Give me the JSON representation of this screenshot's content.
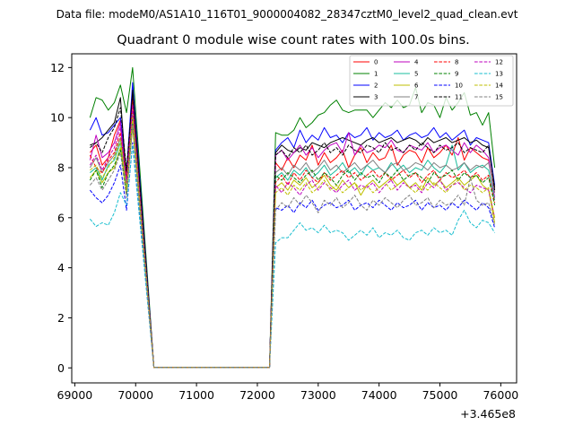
{
  "chart_data": {
    "type": "line",
    "suptitle": "Data file: modeM0/AS1A10_116T01_9000004082_28347cztM0_level2_quad_clean.evt",
    "title": "Quadrant 0 module wise count rates with 100.0s bins.",
    "xlabel": "",
    "ylabel": "",
    "x_offset_label": "+3.465e8",
    "xlim": [
      68950,
      76260
    ],
    "ylim": [
      -0.6,
      12.55
    ],
    "xticks": [
      69000,
      70000,
      71000,
      72000,
      73000,
      74000,
      75000,
      76000
    ],
    "yticks": [
      0,
      2,
      4,
      6,
      8,
      10,
      12
    ],
    "legend_position": "top-right",
    "x_start": 69250,
    "x_step": 100,
    "series": [
      {
        "name": "0",
        "color": "#ff0000",
        "dash": "solid",
        "gap_rate": 0.02,
        "gap_start": 70300,
        "gap_end": 72200,
        "segA": [
          8.6,
          8.9,
          8.1,
          8.4,
          9.3,
          9.9,
          7.6,
          10.8
        ],
        "segB": [
          8.2,
          7.9,
          8.4,
          8.0,
          8.5,
          8.3,
          8.9,
          8.1,
          8.6,
          8.2,
          8.4,
          8.7,
          8.0,
          8.5,
          8.8,
          8.2,
          8.6,
          8.3,
          8.4,
          8.9,
          8.1,
          8.5,
          8.7,
          8.6,
          8.2,
          8.8,
          8.4,
          8.6,
          8.9,
          8.5,
          9.2,
          8.3,
          8.8,
          8.6,
          8.4,
          8.3,
          7.0
        ]
      },
      {
        "name": "1",
        "color": "#008000",
        "dash": "solid",
        "gap_rate": 0.02,
        "gap_start": 70300,
        "gap_end": 72200,
        "segA": [
          10.0,
          10.8,
          10.7,
          10.3,
          10.6,
          11.3,
          10.2,
          12.0
        ],
        "segB": [
          9.4,
          9.3,
          9.3,
          9.5,
          10.0,
          9.6,
          9.8,
          10.1,
          10.2,
          10.5,
          10.7,
          10.3,
          10.2,
          10.3,
          10.3,
          10.3,
          10.0,
          10.3,
          10.6,
          10.4,
          10.7,
          10.4,
          10.5,
          11.2,
          10.2,
          10.6,
          10.5,
          10.0,
          10.8,
          10.3,
          10.6,
          11.0,
          10.1,
          10.2,
          9.7,
          10.2,
          8.0
        ]
      },
      {
        "name": "2",
        "color": "#0000ff",
        "dash": "solid",
        "gap_rate": 0.02,
        "gap_start": 70300,
        "gap_end": 72200,
        "segA": [
          9.5,
          10.0,
          9.3,
          9.4,
          9.7,
          10.0,
          7.8,
          11.4
        ],
        "segB": [
          8.7,
          9.0,
          9.2,
          8.8,
          9.5,
          9.0,
          9.3,
          9.1,
          9.6,
          9.2,
          9.3,
          9.0,
          9.4,
          9.2,
          9.3,
          9.6,
          9.1,
          9.4,
          9.2,
          9.3,
          9.5,
          9.1,
          9.3,
          9.4,
          9.2,
          9.3,
          9.6,
          9.2,
          9.4,
          9.1,
          9.3,
          9.5,
          8.9,
          9.2,
          9.1,
          9.0,
          7.3
        ]
      },
      {
        "name": "3",
        "color": "#000000",
        "dash": "solid",
        "gap_rate": 0.02,
        "gap_start": 70300,
        "gap_end": 72200,
        "segA": [
          8.9,
          9.0,
          9.2,
          9.5,
          9.8,
          10.8,
          7.5,
          11.1
        ],
        "segB": [
          8.6,
          8.9,
          8.7,
          8.6,
          8.8,
          8.7,
          9.0,
          8.9,
          8.8,
          9.0,
          9.1,
          9.2,
          9.1,
          9.0,
          8.9,
          9.1,
          9.2,
          9.0,
          9.1,
          9.2,
          9.0,
          9.1,
          9.2,
          9.1,
          8.9,
          9.2,
          9.0,
          9.1,
          9.2,
          9.0,
          9.1,
          9.2,
          9.0,
          9.1,
          8.9,
          8.8,
          7.2
        ]
      },
      {
        "name": "4",
        "color": "#bf00bf",
        "dash": "solid",
        "gap_rate": 0.02,
        "gap_start": 70300,
        "gap_end": 72200,
        "segA": [
          8.3,
          9.3,
          8.4,
          8.6,
          9.0,
          9.8,
          7.3,
          10.0
        ],
        "segB": [
          8.5,
          8.7,
          8.3,
          8.6,
          8.9,
          8.5,
          8.8,
          8.4,
          8.7,
          8.9,
          9.0,
          8.6,
          9.4,
          8.5,
          8.9,
          8.6,
          8.7,
          8.9,
          8.8,
          9.1,
          8.7,
          8.6,
          8.9,
          8.8,
          8.7,
          9.0,
          8.6,
          8.8,
          8.9,
          8.7,
          8.5,
          9.0,
          8.6,
          8.9,
          8.7,
          8.4,
          6.8
        ]
      },
      {
        "name": "5",
        "color": "#1abc9c",
        "dash": "solid",
        "gap_rate": 0.02,
        "gap_start": 70300,
        "gap_end": 72200,
        "segA": [
          7.8,
          8.0,
          7.5,
          8.1,
          8.3,
          9.0,
          7.2,
          9.8
        ],
        "segB": [
          7.6,
          7.8,
          7.5,
          7.9,
          7.7,
          8.0,
          7.6,
          7.8,
          8.1,
          7.7,
          7.9,
          8.2,
          7.8,
          8.0,
          7.7,
          8.1,
          7.9,
          8.0,
          7.8,
          8.2,
          7.9,
          8.1,
          7.8,
          8.0,
          7.9,
          8.3,
          8.0,
          7.8,
          8.1,
          8.9,
          7.9,
          8.2,
          7.8,
          8.0,
          8.1,
          7.9,
          6.7
        ]
      },
      {
        "name": "6",
        "color": "#bfbf00",
        "dash": "solid",
        "gap_rate": 0.02,
        "gap_start": 70300,
        "gap_end": 72200,
        "segA": [
          7.6,
          7.9,
          7.4,
          7.8,
          8.0,
          8.8,
          7.0,
          9.6
        ],
        "segB": [
          7.2,
          7.4,
          7.1,
          7.5,
          7.3,
          7.6,
          7.2,
          7.4,
          7.7,
          7.3,
          7.1,
          7.5,
          7.2,
          7.4,
          6.9,
          7.3,
          7.5,
          7.2,
          7.4,
          7.6,
          7.3,
          7.5,
          7.2,
          7.4,
          7.1,
          7.6,
          7.3,
          7.5,
          7.2,
          7.4,
          7.6,
          7.3,
          7.5,
          7.7,
          7.3,
          7.1,
          5.8
        ]
      },
      {
        "name": "7",
        "color": "#808080",
        "dash": "solid",
        "gap_rate": 0.02,
        "gap_start": 70300,
        "gap_end": 72200,
        "segA": [
          8.0,
          8.4,
          7.8,
          8.2,
          8.5,
          9.2,
          7.4,
          10.2
        ],
        "segB": [
          7.8,
          8.0,
          7.7,
          8.1,
          7.9,
          8.2,
          7.8,
          8.0,
          8.3,
          7.9,
          8.1,
          7.8,
          8.0,
          8.2,
          7.9,
          8.1,
          8.3,
          8.0,
          7.8,
          8.1,
          8.2,
          7.9,
          8.0,
          8.2,
          8.1,
          7.9,
          8.2,
          8.0,
          8.1,
          7.9,
          8.0,
          8.2,
          7.9,
          8.1,
          8.0,
          8.2,
          7.0
        ]
      },
      {
        "name": "8",
        "color": "#ff0000",
        "dash": "dashed",
        "gap_rate": 0.02,
        "gap_start": 70300,
        "gap_end": 72200,
        "segA": [
          8.5,
          8.0,
          7.8,
          8.3,
          8.6,
          9.4,
          7.6,
          10.4
        ],
        "segB": [
          7.4,
          7.7,
          7.3,
          7.8,
          7.5,
          7.9,
          7.6,
          7.4,
          7.8,
          7.5,
          7.7,
          7.9,
          7.6,
          7.8,
          7.5,
          7.7,
          7.9,
          7.6,
          7.8,
          7.5,
          7.7,
          7.9,
          7.6,
          7.8,
          7.4,
          7.7,
          7.9,
          7.5,
          7.8,
          7.6,
          7.7,
          7.9,
          7.6,
          7.8,
          7.5,
          7.7,
          6.6
        ]
      },
      {
        "name": "9",
        "color": "#008000",
        "dash": "dashed",
        "gap_rate": 0.02,
        "gap_start": 70300,
        "gap_end": 72200,
        "segA": [
          7.5,
          7.9,
          7.2,
          7.8,
          8.1,
          8.7,
          6.9,
          9.9
        ],
        "segB": [
          7.7,
          7.5,
          7.8,
          7.6,
          7.4,
          7.7,
          7.9,
          7.5,
          7.8,
          7.6,
          7.3,
          7.7,
          7.9,
          7.5,
          7.8,
          7.6,
          7.7,
          7.4,
          7.8,
          7.6,
          7.9,
          7.5,
          7.7,
          7.8,
          7.6,
          7.4,
          7.8,
          7.6,
          7.7,
          7.9,
          7.5,
          7.8,
          7.6,
          7.7,
          7.4,
          7.6,
          6.5
        ]
      },
      {
        "name": "10",
        "color": "#0000ff",
        "dash": "dashed",
        "gap_rate": 0.02,
        "gap_start": 70300,
        "gap_end": 72200,
        "segA": [
          7.1,
          6.8,
          6.6,
          6.9,
          7.4,
          8.1,
          6.3,
          9.0
        ],
        "segB": [
          6.4,
          6.3,
          6.5,
          6.2,
          6.6,
          6.4,
          6.7,
          6.3,
          6.5,
          6.6,
          6.4,
          6.5,
          6.7,
          6.3,
          6.5,
          6.6,
          6.4,
          6.7,
          6.5,
          6.3,
          6.6,
          6.4,
          6.5,
          6.7,
          6.3,
          6.6,
          6.4,
          6.5,
          6.3,
          6.6,
          6.4,
          6.7,
          6.5,
          6.3,
          6.6,
          6.4,
          5.6
        ]
      },
      {
        "name": "11",
        "color": "#000000",
        "dash": "dashed",
        "gap_rate": 0.02,
        "gap_start": 70300,
        "gap_end": 72200,
        "segA": [
          8.8,
          9.0,
          8.6,
          9.2,
          9.6,
          10.4,
          7.9,
          11.0
        ],
        "segB": [
          8.5,
          8.7,
          8.4,
          8.8,
          8.6,
          8.9,
          8.5,
          8.7,
          9.0,
          8.6,
          8.8,
          8.5,
          8.9,
          8.7,
          8.6,
          8.9,
          8.8,
          8.6,
          9.0,
          8.7,
          8.8,
          8.6,
          8.9,
          8.7,
          9.0,
          8.8,
          8.6,
          8.9,
          8.7,
          8.8,
          9.0,
          8.6,
          8.8,
          8.7,
          8.6,
          8.9,
          7.1
        ]
      },
      {
        "name": "12",
        "color": "#bf00bf",
        "dash": "dashed",
        "gap_rate": 0.02,
        "gap_start": 70300,
        "gap_end": 72200,
        "segA": [
          8.1,
          8.5,
          7.9,
          8.4,
          8.8,
          9.6,
          7.4,
          10.5
        ],
        "segB": [
          7.3,
          7.0,
          7.4,
          7.2,
          6.9,
          7.3,
          7.5,
          7.1,
          7.4,
          7.2,
          7.0,
          7.3,
          7.5,
          7.1,
          7.3,
          7.2,
          7.4,
          7.0,
          7.3,
          7.5,
          7.1,
          7.4,
          7.2,
          7.3,
          7.0,
          7.4,
          7.2,
          7.5,
          7.1,
          7.3,
          7.4,
          7.2,
          7.0,
          7.3,
          7.2,
          7.1,
          6.0
        ]
      },
      {
        "name": "13",
        "color": "#17becf",
        "dash": "dashed",
        "gap_rate": 0.02,
        "gap_start": 70300,
        "gap_end": 72200,
        "segA": [
          5.95,
          5.65,
          5.8,
          5.7,
          6.2,
          7.0,
          6.5,
          8.9
        ],
        "segB": [
          5.0,
          5.2,
          5.2,
          5.5,
          5.8,
          5.5,
          5.6,
          5.4,
          5.7,
          5.4,
          5.5,
          5.4,
          5.1,
          5.3,
          5.5,
          5.3,
          5.6,
          5.2,
          5.4,
          5.3,
          5.5,
          5.2,
          5.1,
          5.4,
          5.5,
          5.3,
          5.6,
          5.4,
          5.5,
          5.3,
          5.9,
          6.3,
          5.8,
          5.6,
          5.9,
          5.8,
          5.4
        ]
      },
      {
        "name": "14",
        "color": "#bfbf00",
        "dash": "dashed",
        "gap_rate": 0.02,
        "gap_start": 70300,
        "gap_end": 72200,
        "segA": [
          7.9,
          8.1,
          7.6,
          8.0,
          8.4,
          9.1,
          7.1,
          10.0
        ],
        "segB": [
          7.0,
          7.2,
          6.9,
          7.3,
          7.1,
          7.4,
          7.0,
          7.2,
          7.5,
          7.1,
          7.3,
          7.0,
          7.2,
          7.4,
          7.1,
          7.3,
          7.0,
          7.2,
          7.4,
          7.1,
          7.3,
          7.5,
          7.2,
          7.0,
          7.3,
          7.1,
          7.4,
          7.2,
          7.0,
          7.3,
          7.5,
          7.1,
          7.3,
          7.2,
          7.0,
          7.2,
          6.0
        ]
      },
      {
        "name": "15",
        "color": "#808080",
        "dash": "dashed",
        "gap_rate": 0.02,
        "gap_start": 70300,
        "gap_end": 72200,
        "segA": [
          7.3,
          7.6,
          7.1,
          7.5,
          7.9,
          8.6,
          6.8,
          9.7
        ],
        "segB": [
          6.3,
          6.6,
          6.4,
          6.8,
          6.5,
          6.9,
          6.6,
          6.2,
          6.7,
          6.5,
          6.8,
          6.4,
          6.6,
          6.9,
          6.5,
          6.3,
          6.7,
          6.5,
          6.8,
          6.6,
          6.4,
          6.7,
          6.9,
          6.5,
          6.6,
          6.8,
          6.4,
          6.7,
          6.5,
          6.6,
          6.9,
          6.5,
          7.6,
          6.7,
          6.5,
          6.6,
          5.7
        ]
      }
    ]
  }
}
